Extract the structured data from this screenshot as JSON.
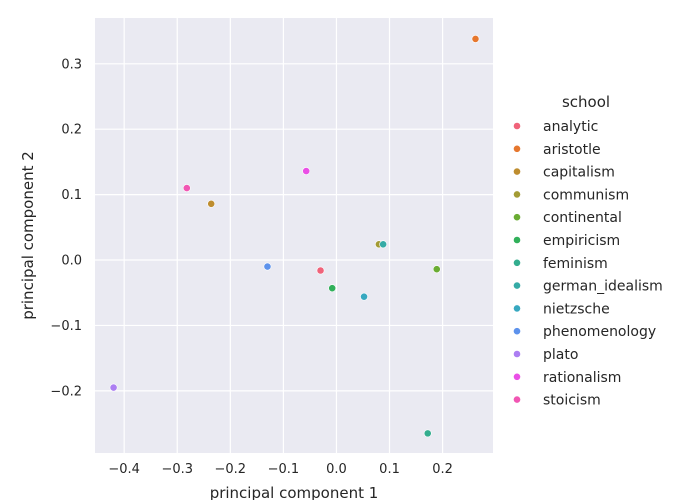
{
  "chart_data": {
    "type": "scatter",
    "xlabel": "principal component 1",
    "ylabel": "principal component 2",
    "xlim": [
      -0.455,
      0.295
    ],
    "ylim": [
      -0.295,
      0.37
    ],
    "xticks": [
      -0.4,
      -0.3,
      -0.2,
      -0.1,
      0.0,
      0.1,
      0.2
    ],
    "xtick_labels": [
      "−0.4",
      "−0.3",
      "−0.2",
      "−0.1",
      "0.0",
      "0.1",
      "0.2"
    ],
    "yticks": [
      -0.2,
      -0.1,
      0.0,
      0.1,
      0.2,
      0.3
    ],
    "ytick_labels": [
      "−0.2",
      "−0.1",
      "0.0",
      "0.1",
      "0.2",
      "0.3"
    ],
    "grid": true,
    "legend": {
      "title": "school",
      "placement": "right"
    },
    "series": [
      {
        "name": "analytic",
        "color": "#f0637a",
        "x": -0.03,
        "y": -0.016
      },
      {
        "name": "aristotle",
        "color": "#e6772e",
        "x": 0.262,
        "y": 0.338
      },
      {
        "name": "capitalism",
        "color": "#be8d2f",
        "x": -0.236,
        "y": 0.086
      },
      {
        "name": "communism",
        "color": "#a39b34",
        "x": 0.08,
        "y": 0.024
      },
      {
        "name": "continental",
        "color": "#6aac33",
        "x": 0.189,
        "y": -0.014
      },
      {
        "name": "empiricism",
        "color": "#31b05a",
        "x": -0.008,
        "y": -0.043
      },
      {
        "name": "feminism",
        "color": "#33ad8e",
        "x": 0.172,
        "y": -0.265
      },
      {
        "name": "german_idealism",
        "color": "#35aba6",
        "x": 0.088,
        "y": 0.024
      },
      {
        "name": "nietzsche",
        "color": "#37a8c0",
        "x": 0.052,
        "y": -0.056
      },
      {
        "name": "phenomenology",
        "color": "#5d92ec",
        "x": -0.13,
        "y": -0.01
      },
      {
        "name": "plato",
        "color": "#ac7ef2",
        "x": -0.42,
        "y": -0.195
      },
      {
        "name": "rationalism",
        "color": "#ea4fe6",
        "x": -0.057,
        "y": 0.136
      },
      {
        "name": "stoicism",
        "color": "#f156b3",
        "x": -0.282,
        "y": 0.11
      }
    ]
  }
}
